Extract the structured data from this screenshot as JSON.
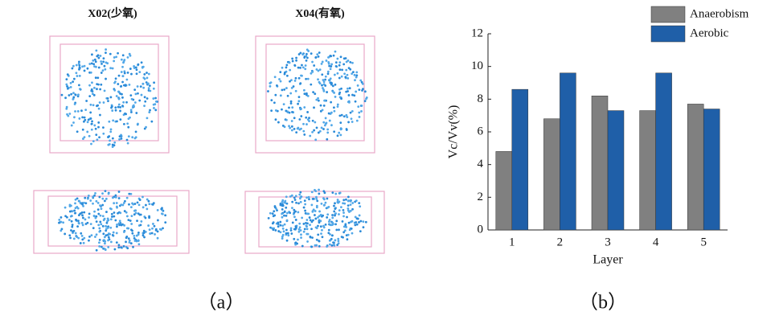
{
  "panel_a": {
    "titles": [
      "X02(少氧)",
      "X04(有氧)"
    ],
    "caption": "（a）"
  },
  "chart_data": {
    "type": "bar",
    "caption": "（b）",
    "x_label": "Layer",
    "y_label": "Vc/Vv(%)",
    "categories": [
      "1",
      "2",
      "3",
      "4",
      "5"
    ],
    "series": [
      {
        "name": "Anaerobism",
        "color": "#808080",
        "values": [
          4.8,
          6.8,
          8.2,
          7.3,
          7.7
        ]
      },
      {
        "name": "Aerobic",
        "color": "#1f5fa8",
        "values": [
          8.6,
          9.6,
          7.3,
          9.6,
          7.4
        ]
      }
    ],
    "ylim": [
      0,
      12
    ],
    "yticks": [
      0,
      2,
      4,
      6,
      8,
      10,
      12
    ],
    "legend": "upper-right"
  }
}
